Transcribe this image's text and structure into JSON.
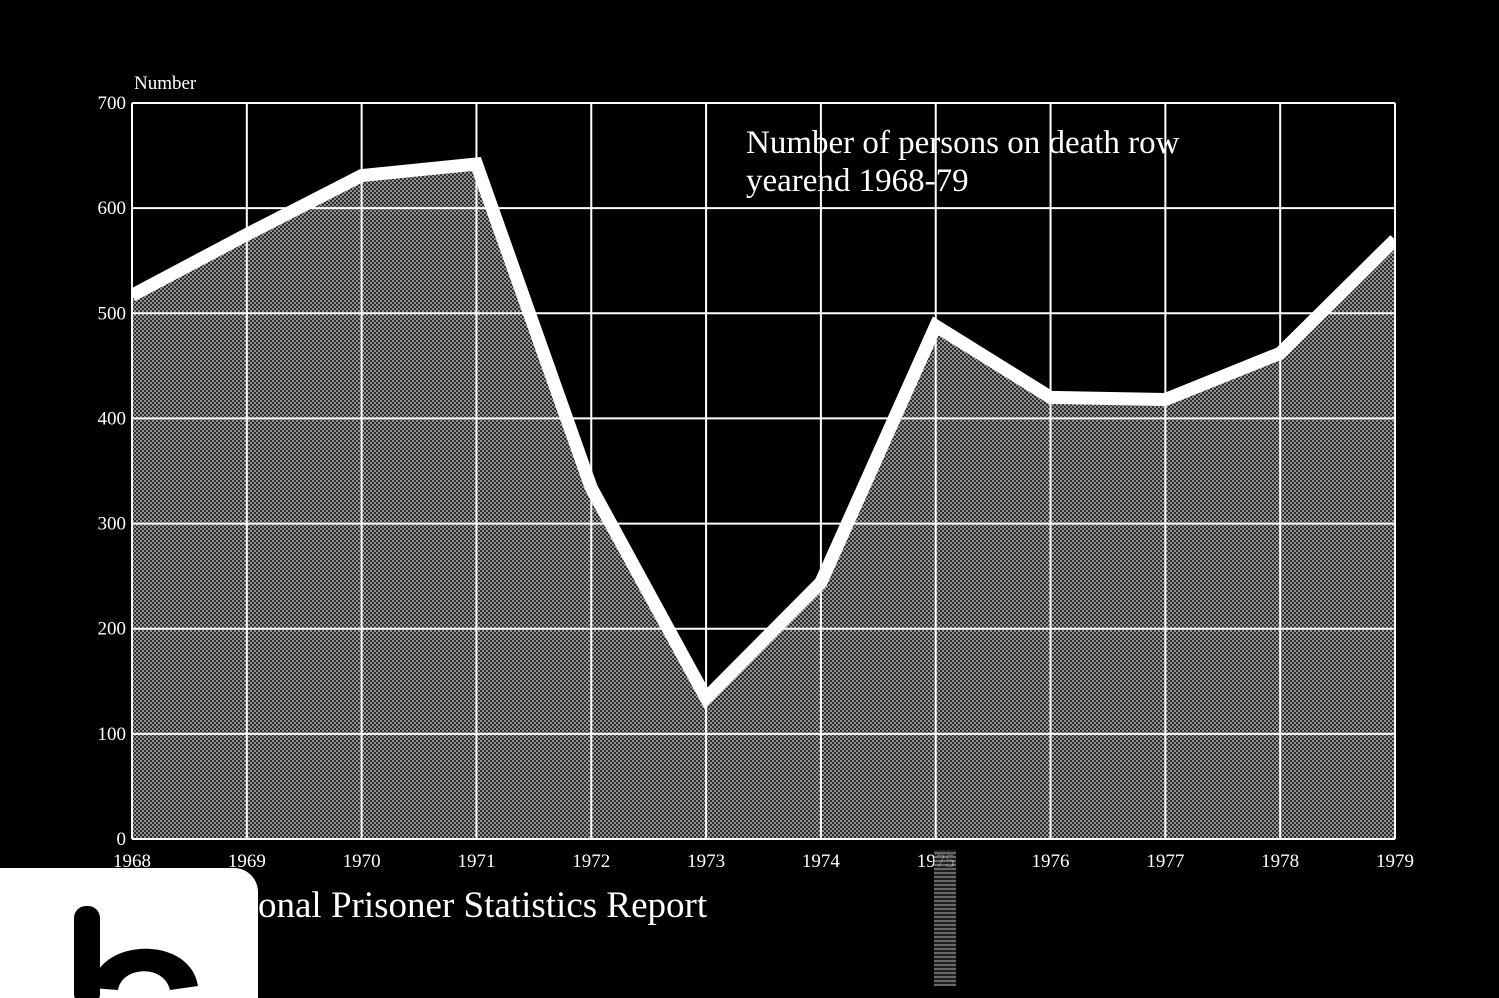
{
  "chart_data": {
    "type": "area",
    "title": "Number of persons on death row",
    "subtitle": "yearend 1968-79",
    "ylabel": "Number",
    "xlabel": "",
    "x": [
      1968,
      1969,
      1970,
      1971,
      1972,
      1973,
      1974,
      1975,
      1976,
      1977,
      1978,
      1979
    ],
    "x_tick_labels": [
      "1968",
      "1969",
      "1970",
      "1971",
      "1972",
      "1973",
      "1974",
      "1975",
      "1976",
      "1977",
      "1978",
      "1979"
    ],
    "series": [
      {
        "values": [
          517,
          575,
          631,
          642,
          334,
          134,
          244,
          488,
          420,
          418,
          462,
          570
        ]
      }
    ],
    "ylim": [
      0,
      700
    ],
    "y_ticks": [
      0,
      100,
      200,
      300,
      400,
      500,
      600,
      700
    ],
    "grid": true,
    "colors": {
      "background": "#000000",
      "line": "#ffffff",
      "fill": "#4a4a4a",
      "grid": "#ffffff"
    }
  },
  "footer": {
    "report_title": "onal Prisoner Statistics Report"
  }
}
